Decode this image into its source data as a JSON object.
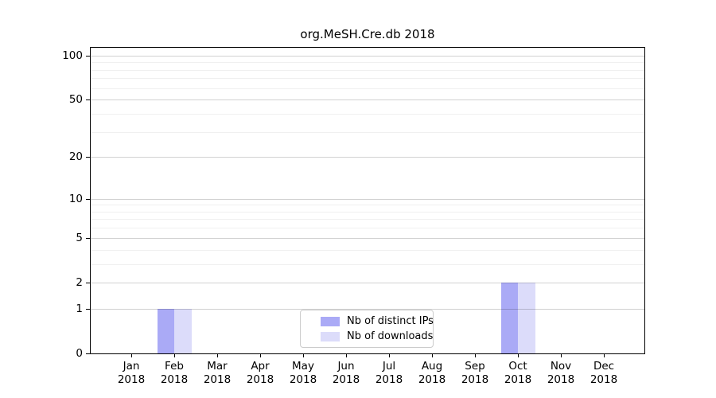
{
  "chart_data": {
    "type": "bar",
    "title": "org.MeSH.Cre.db 2018",
    "categories": [
      "Jan 2018",
      "Feb 2018",
      "Mar 2018",
      "Apr 2018",
      "May 2018",
      "Jun 2018",
      "Jul 2018",
      "Aug 2018",
      "Sep 2018",
      "Oct 2018",
      "Nov 2018",
      "Dec 2018"
    ],
    "series": [
      {
        "name": "Nb of distinct IPs",
        "color": "#aaaaf6",
        "values": [
          0,
          1,
          0,
          0,
          0,
          0,
          0,
          0,
          0,
          2,
          0,
          0
        ]
      },
      {
        "name": "Nb of downloads",
        "color": "#dcdcfa",
        "values": [
          0,
          1,
          0,
          0,
          0,
          0,
          0,
          0,
          0,
          2,
          0,
          0
        ]
      }
    ],
    "y_scale": "log1p",
    "y_ticks": [
      0,
      1,
      2,
      5,
      10,
      20,
      50,
      100
    ],
    "y_minor_gridlines": [
      3,
      4,
      6,
      7,
      8,
      9,
      30,
      40,
      60,
      70,
      80,
      90
    ],
    "ylim": [
      0,
      113
    ],
    "grid": true,
    "legend_position": "bottom-center"
  },
  "colors": {
    "major_grid": "rgba(0,0,0,0.18)",
    "minor_grid": "rgba(0,0,0,0.06)",
    "axis": "#000000",
    "background": "#ffffff"
  }
}
